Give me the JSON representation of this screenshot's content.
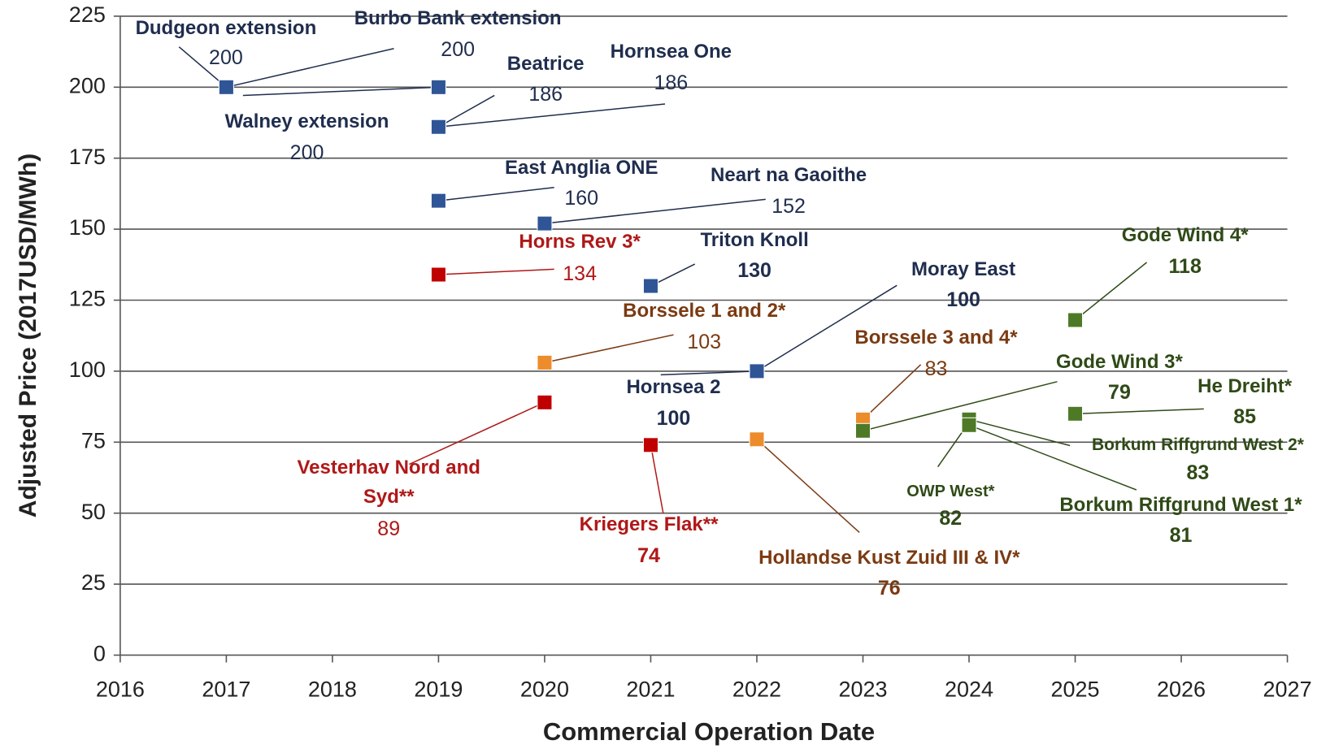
{
  "chart_data": {
    "type": "scatter",
    "xlabel": "Commercial Operation Date",
    "ylabel": "Adjusted Price (2017USD/MWh)",
    "xlim": [
      2016,
      2027
    ],
    "xticks": [
      2016,
      2017,
      2018,
      2019,
      2020,
      2021,
      2022,
      2023,
      2024,
      2025,
      2026,
      2027
    ],
    "ylim": [
      0,
      225
    ],
    "yticks": [
      0,
      25,
      50,
      75,
      100,
      125,
      150,
      175,
      200,
      225
    ],
    "grid": true,
    "points": [
      {
        "name": "Dudgeon extension",
        "x": 2017,
        "y": 200,
        "color": "#2f5597",
        "text_color": "#1f2d4e"
      },
      {
        "name": "Burbo Bank extension",
        "x": 2017,
        "y": 200,
        "color": "#2f5597",
        "text_color": "#1f2d4e"
      },
      {
        "name": "Walney extension",
        "x": 2019,
        "y": 200,
        "color": "#2f5597",
        "text_color": "#1f2d4e"
      },
      {
        "name": "Beatrice",
        "x": 2019,
        "y": 186,
        "color": "#2f5597",
        "text_color": "#1f2d4e"
      },
      {
        "name": "Hornsea One",
        "x": 2019,
        "y": 186,
        "color": "#2f5597",
        "text_color": "#1f2d4e"
      },
      {
        "name": "East Anglia ONE",
        "x": 2019,
        "y": 160,
        "color": "#2f5597",
        "text_color": "#1f2d4e"
      },
      {
        "name": "Neart na Gaoithe",
        "x": 2020,
        "y": 152,
        "color": "#2f5597",
        "text_color": "#1f2d4e"
      },
      {
        "name": "Horns Rev 3*",
        "x": 2019,
        "y": 134,
        "color": "#c00000",
        "text_color": "#b01818"
      },
      {
        "name": "Triton Knoll",
        "x": 2021,
        "y": 130,
        "color": "#2f5597",
        "text_color": "#1f2d4e"
      },
      {
        "name": "Borssele 1 and 2*",
        "x": 2020,
        "y": 103,
        "color": "#ed8c2b",
        "text_color": "#7b3a12"
      },
      {
        "name": "Vesterhav Nord and Syd**",
        "x": 2020,
        "y": 89,
        "color": "#c00000",
        "text_color": "#b01818"
      },
      {
        "name": "Kriegers Flak**",
        "x": 2021,
        "y": 74,
        "color": "#c00000",
        "text_color": "#b01818"
      },
      {
        "name": "Hornsea 2",
        "x": 2022,
        "y": 100,
        "color": "#2f5597",
        "text_color": "#1f2d4e"
      },
      {
        "name": "Moray East",
        "x": 2022,
        "y": 100,
        "color": "#2f5597",
        "text_color": "#1f2d4e"
      },
      {
        "name": "Hollandse Kust Zuid III & IV*",
        "x": 2022,
        "y": 76,
        "color": "#ed8c2b",
        "text_color": "#7b3a12"
      },
      {
        "name": "Borssele 3 and 4*",
        "x": 2023,
        "y": 83,
        "color": "#ed8c2b",
        "text_color": "#7b3a12"
      },
      {
        "name": "Gode Wind 3*",
        "x": 2023,
        "y": 79,
        "color": "#4e7a27",
        "text_color": "#2f4a17"
      },
      {
        "name": "OWP West*",
        "x": 2024,
        "y": 82,
        "color": "#4e7a27",
        "text_color": "#2f4a17"
      },
      {
        "name": "Borkum Riffgrund West 2*",
        "x": 2024,
        "y": 83,
        "color": "#4e7a27",
        "text_color": "#2f4a17"
      },
      {
        "name": "Borkum Riffgrund West 1*",
        "x": 2024,
        "y": 81,
        "color": "#4e7a27",
        "text_color": "#2f4a17"
      },
      {
        "name": "Gode Wind 4*",
        "x": 2025,
        "y": 118,
        "color": "#4e7a27",
        "text_color": "#2f4a17"
      },
      {
        "name": "He Dreiht*",
        "x": 2025,
        "y": 85,
        "color": "#4e7a27",
        "text_color": "#2f4a17"
      }
    ]
  }
}
